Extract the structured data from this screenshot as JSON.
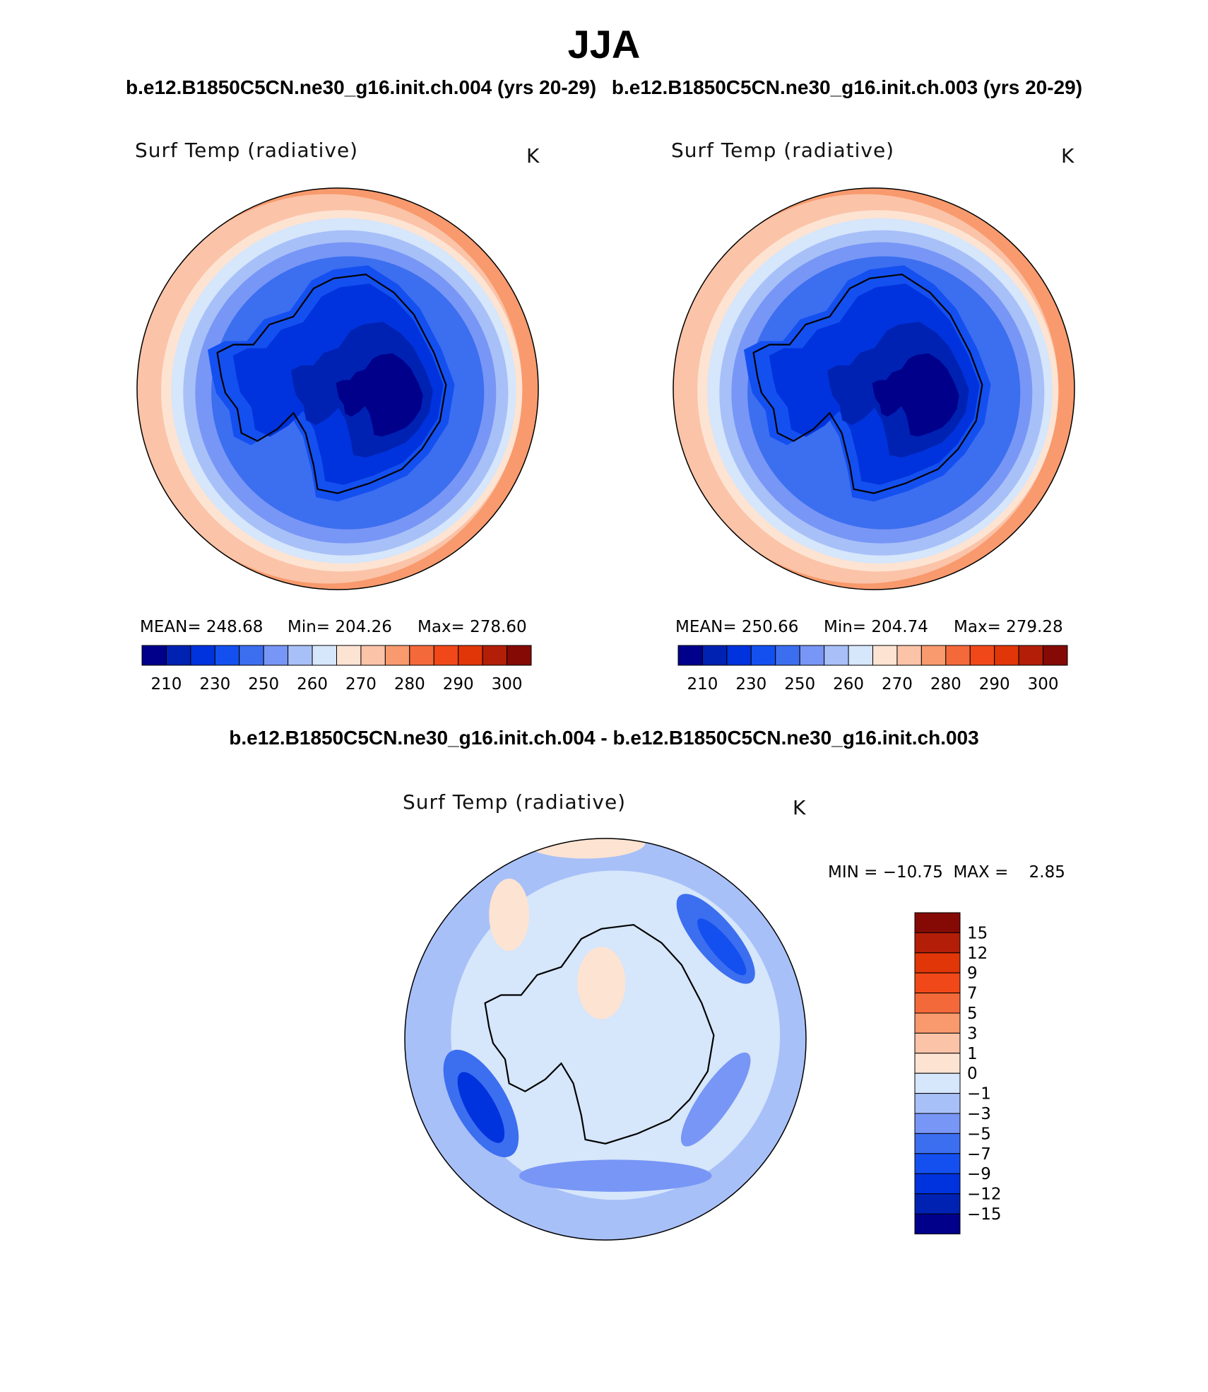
{
  "figure": {
    "title": "JJA",
    "case_a_title": "b.e12.B1850C5CN.ne30_g16.init.ch.004 (yrs 20-29)",
    "case_b_title": "b.e12.B1850C5CN.ne30_g16.init.ch.003 (yrs 20-29)",
    "diff_title": "b.e12.B1850C5CN.ne30_g16.init.ch.004 - b.e12.B1850C5CN.ne30_g16.init.ch.003"
  },
  "panels": [
    {
      "variable": "Surf Temp (radiative)",
      "units": "K",
      "mean_label": "MEAN=",
      "mean": "248.68",
      "min_label": "Min=",
      "min": "204.26",
      "max_label": "Max=",
      "max": "278.60"
    },
    {
      "variable": "Surf Temp (radiative)",
      "units": "K",
      "mean_label": "MEAN=",
      "mean": "250.66",
      "min_label": "Min=",
      "min": "204.74",
      "max_label": "Max=",
      "max": "279.28"
    },
    {
      "variable": "Surf Temp (radiative)",
      "units": "K",
      "minmax_text": "MIN = −10.75  MAX =    2.85"
    }
  ],
  "colorbars": {
    "absolute": {
      "colors": [
        "#00008b",
        "#0022b2",
        "#0033dd",
        "#1450f0",
        "#3c6ef0",
        "#7896f5",
        "#a8c0f8",
        "#d6e6fb",
        "#fde3d2",
        "#fbc3a8",
        "#f89a6d",
        "#f4693a",
        "#f04818",
        "#e03608",
        "#b31e08",
        "#850a05"
      ],
      "tick_labels": [
        "210",
        "230",
        "250",
        "260",
        "270",
        "280",
        "290",
        "300"
      ]
    },
    "difference": {
      "colors": [
        "#850a05",
        "#b31e08",
        "#e03608",
        "#f04818",
        "#f4693a",
        "#f89a6d",
        "#fbc3a8",
        "#fde3d2",
        "#d6e6fb",
        "#a8c0f8",
        "#7896f5",
        "#3c6ef0",
        "#1450f0",
        "#0033dd",
        "#0022b2",
        "#00008b"
      ],
      "tick_labels": [
        "15",
        "12",
        "9",
        "7",
        "5",
        "3",
        "1",
        "0",
        "−1",
        "−3",
        "−5",
        "−7",
        "−9",
        "−12",
        "−15"
      ]
    }
  },
  "map_colors": {
    "ocean_warm": "#fbc3a8",
    "ocean_warmer": "#f89a6d",
    "pale": "#fde3d2",
    "diff_pale_blue": "#d6e6fb",
    "diff_light_blue": "#a8c0f8"
  }
}
